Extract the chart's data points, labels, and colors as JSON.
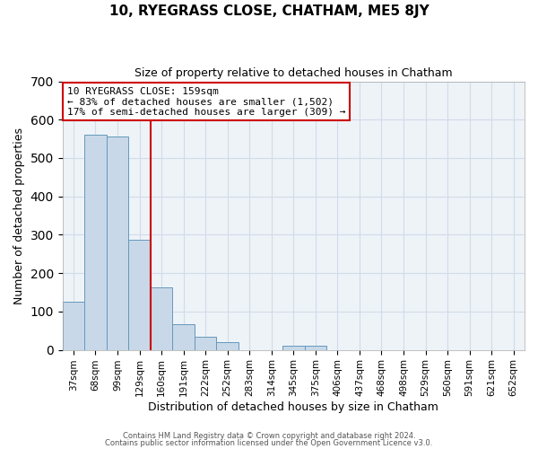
{
  "title": "10, RYEGRASS CLOSE, CHATHAM, ME5 8JY",
  "subtitle": "Size of property relative to detached houses in Chatham",
  "xlabel": "Distribution of detached houses by size in Chatham",
  "ylabel": "Number of detached properties",
  "bar_labels": [
    "37sqm",
    "68sqm",
    "99sqm",
    "129sqm",
    "160sqm",
    "191sqm",
    "222sqm",
    "252sqm",
    "283sqm",
    "314sqm",
    "345sqm",
    "375sqm",
    "406sqm",
    "437sqm",
    "468sqm",
    "498sqm",
    "529sqm",
    "560sqm",
    "591sqm",
    "621sqm",
    "652sqm"
  ],
  "bar_values": [
    125,
    560,
    557,
    288,
    163,
    68,
    33,
    20,
    0,
    0,
    10,
    10,
    0,
    0,
    0,
    0,
    0,
    0,
    0,
    0,
    0
  ],
  "bar_color": "#c8d8e8",
  "bar_edge_color": "#6699bb",
  "grid_color": "#d0dce8",
  "bg_color": "#eef3f8",
  "vline_color": "#cc0000",
  "annotation_title": "10 RYEGRASS CLOSE: 159sqm",
  "annotation_line1": "← 83% of detached houses are smaller (1,502)",
  "annotation_line2": "17% of semi-detached houses are larger (309) →",
  "annotation_box_color": "#cc0000",
  "ylim": [
    0,
    700
  ],
  "yticks": [
    0,
    100,
    200,
    300,
    400,
    500,
    600,
    700
  ],
  "footnote1": "Contains HM Land Registry data © Crown copyright and database right 2024.",
  "footnote2": "Contains public sector information licensed under the Open Government Licence v3.0."
}
